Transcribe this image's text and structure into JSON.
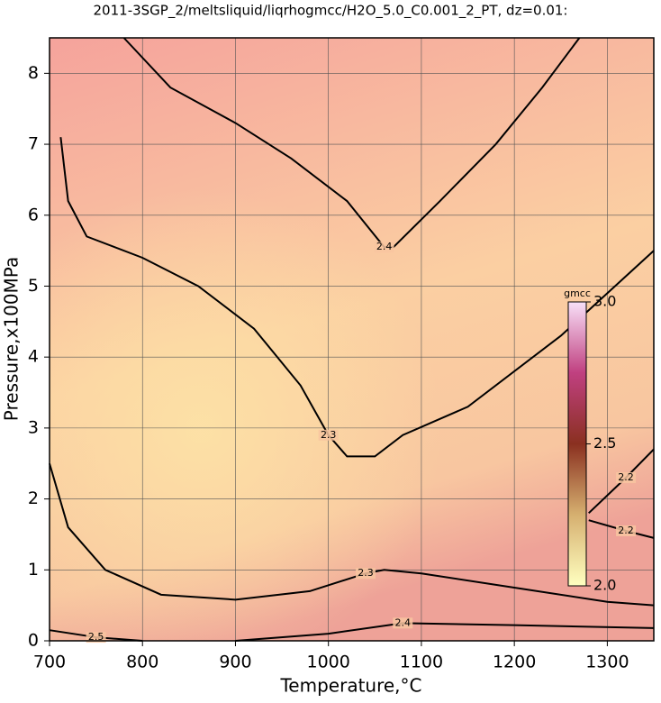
{
  "chart_data": {
    "type": "contour",
    "title": "2011-3SGP_2/meltsliquid/liqrhogmcc/H2O_5.0_C0.001_2_PT, dz=0.01:",
    "x_label": "Temperature,°C",
    "y_label": "Pressure,x100MPa",
    "xlim": [
      700,
      1350
    ],
    "ylim": [
      0,
      8.5
    ],
    "xticks": [
      700,
      800,
      900,
      1000,
      1100,
      1200,
      1300
    ],
    "yticks": [
      0,
      1,
      2,
      3,
      4,
      5,
      6,
      7,
      8
    ],
    "grid": true,
    "contours": [
      {
        "level": 2.4,
        "x": [
          780,
          830,
          900,
          960,
          1020,
          1060,
          1070,
          1120,
          1180,
          1230,
          1270
        ],
        "y": [
          8.5,
          7.8,
          7.3,
          6.8,
          6.2,
          5.55,
          5.55,
          6.2,
          7.0,
          7.8,
          8.5
        ]
      },
      {
        "level": 2.3,
        "x": [
          712,
          720,
          740,
          800,
          860,
          920,
          970,
          1000,
          1020,
          1050,
          1080,
          1150,
          1250,
          1350
        ],
        "y": [
          7.1,
          6.2,
          5.7,
          5.4,
          5.0,
          4.4,
          3.6,
          2.9,
          2.6,
          2.6,
          2.9,
          3.3,
          4.3,
          5.5
        ]
      },
      {
        "level": 2.3,
        "x": [
          700,
          720,
          760,
          820,
          900,
          980,
          1040,
          1060,
          1100,
          1200,
          1300,
          1350
        ],
        "y": [
          2.5,
          1.6,
          1.0,
          0.65,
          0.58,
          0.7,
          0.95,
          1.0,
          0.95,
          0.75,
          0.55,
          0.5
        ]
      },
      {
        "level": 2.4,
        "x": [
          900,
          1000,
          1080,
          1200,
          1350
        ],
        "y": [
          0,
          0.1,
          0.25,
          0.22,
          0.18
        ]
      },
      {
        "level": 2.2,
        "x": [
          1280,
          1320,
          1350
        ],
        "y": [
          1.8,
          2.3,
          2.7
        ]
      },
      {
        "level": 2.2,
        "x": [
          1280,
          1320,
          1350
        ],
        "y": [
          1.7,
          1.55,
          1.45
        ]
      },
      {
        "level": 2.5,
        "x": [
          700,
          750,
          800
        ],
        "y": [
          0.15,
          0.05,
          0
        ]
      }
    ],
    "colorbar": {
      "label": "gmcc",
      "lim": [
        2.0,
        3.0
      ],
      "ticks": [
        {
          "value": 2.0,
          "label": "2.0"
        },
        2.5,
        {
          "value": 3.0,
          "label": "3.0"
        }
      ]
    }
  }
}
